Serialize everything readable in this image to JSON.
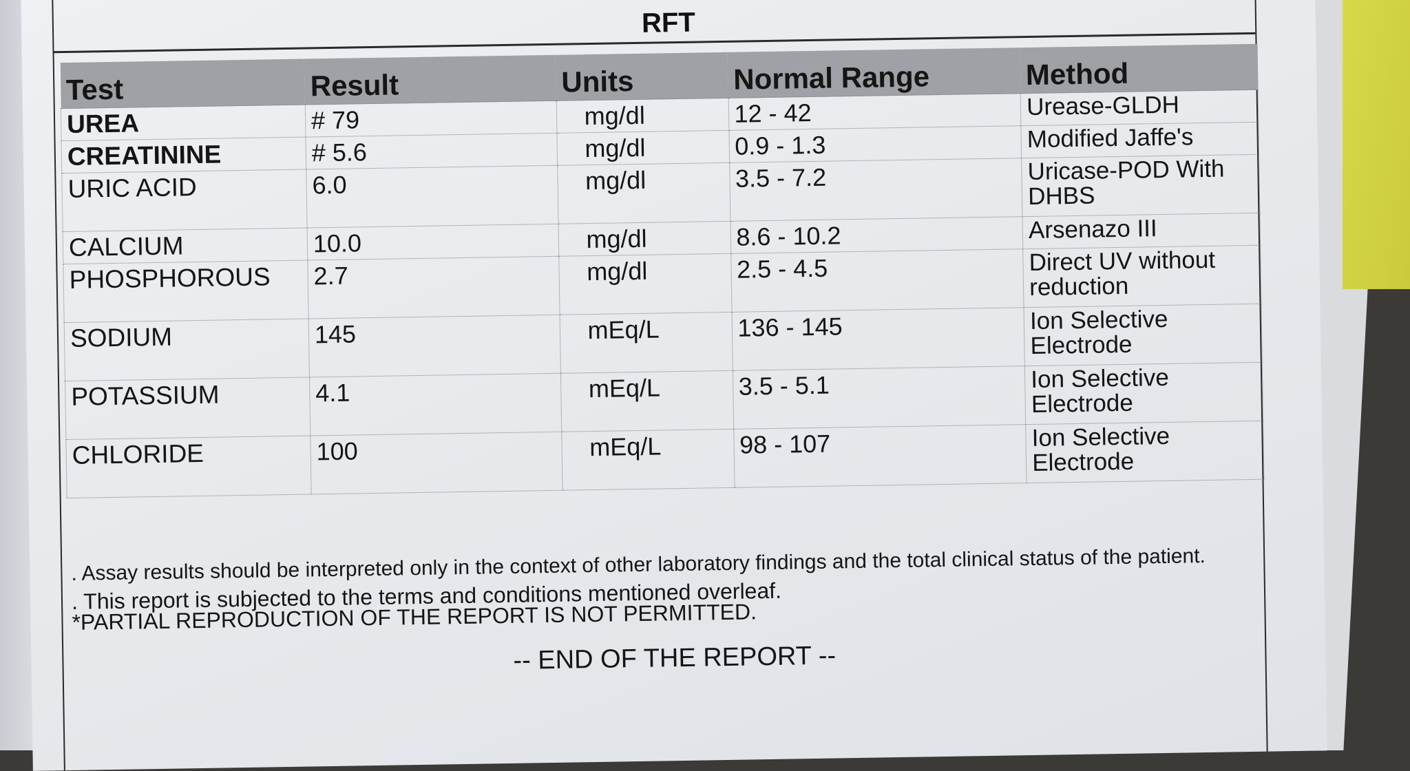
{
  "report": {
    "title": "RFT",
    "columns": {
      "test": "Test",
      "result": "Result",
      "units": "Units",
      "range": "Normal Range",
      "method": "Method"
    },
    "rows": [
      {
        "test": "UREA",
        "result": "# 79",
        "units": "mg/dl",
        "range": "12 - 42",
        "method": "Urease-GLDH"
      },
      {
        "test": "CREATININE",
        "result": "# 5.6",
        "units": "mg/dl",
        "range": "0.9 - 1.3",
        "method": "Modified Jaffe's"
      },
      {
        "test": "URIC ACID",
        "result": "6.0",
        "units": "mg/dl",
        "range": "3.5 - 7.2",
        "method": "Uricase-POD With DHBS"
      },
      {
        "test": "CALCIUM",
        "result": "10.0",
        "units": "mg/dl",
        "range": "8.6 - 10.2",
        "method": "Arsenazo  III"
      },
      {
        "test": "PHOSPHOROUS",
        "result": "2.7",
        "units": "mg/dl",
        "range": "2.5 - 4.5",
        "method": "Direct  UV  without reduction"
      },
      {
        "test": "SODIUM",
        "result": "145",
        "units": "mEq/L",
        "range": "136 - 145",
        "method": "Ion Selective Electrode"
      },
      {
        "test": "POTASSIUM",
        "result": "4.1",
        "units": "mEq/L",
        "range": "3.5 - 5.1",
        "method": "Ion Selective Electrode"
      },
      {
        "test": "CHLORIDE",
        "result": "100",
        "units": "mEq/L",
        "range": "98 - 107",
        "method": "Ion Selective Electrode"
      }
    ],
    "notes": [
      ". Assay results should be interpreted only in the context of other laboratory findings and the total clinical status of the patient.",
      ". This report is subjected to the terms and conditions mentioned overleaf.",
      "*PARTIAL REPRODUCTION OF THE REPORT IS NOT PERMITTED."
    ],
    "end": "-- END OF THE REPORT --"
  }
}
